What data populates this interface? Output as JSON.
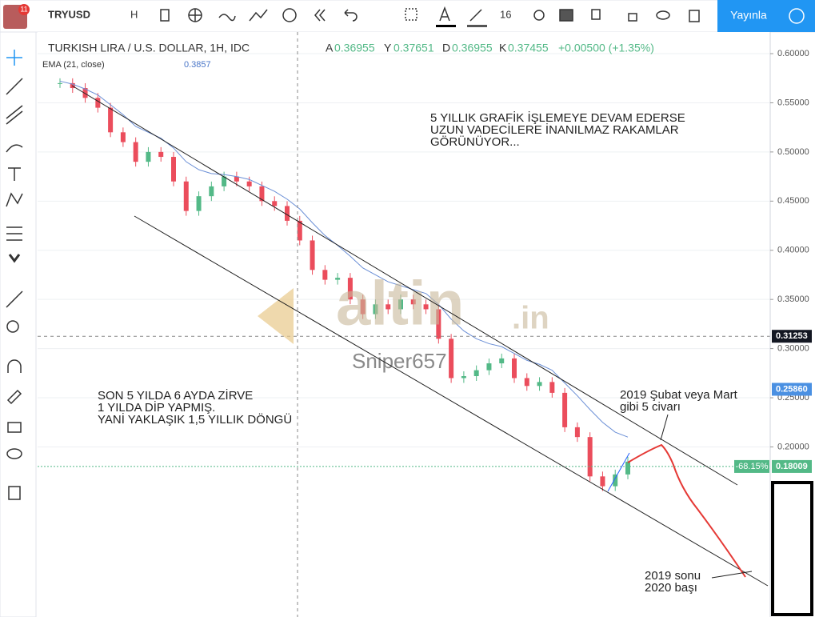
{
  "toolbar": {
    "symbol": "TRYUSD",
    "interval": "H",
    "font_size": "16",
    "publish": "Yayınla",
    "badge": "11"
  },
  "legend": {
    "title": "TURKISH LIRA / U.S. DOLLAR, 1H, IDC",
    "open_label": "A",
    "open": "0.36955",
    "high_label": "Y",
    "high": "0.37651",
    "low_label": "D",
    "low": "0.36955",
    "close_label": "K",
    "close": "0.37455",
    "change": "+0.00500 (+1.35%)",
    "ema_name": "EMA (21, close)",
    "ema_value": "0.3857"
  },
  "watermark": {
    "brand": "altin",
    "domain": ".in",
    "user": "Sniper657"
  },
  "annotations": {
    "top": [
      "5 YILLIK GRAFİK İŞLEMEYE DEVAM EDERSE",
      "UZUN VADECİLERE İNANILMAZ RAKAMLAR",
      "GÖRÜNÜYOR..."
    ],
    "left": [
      "SON 5 YILDA 6 AYDA ZİRVE",
      "1 YILDA DİP YAPMIŞ.",
      "YANİ YAKLAŞIK 1,5 YILLIK DÖNGÜ"
    ],
    "peak": [
      "2019 Şubat veya Mart",
      "gibi 5 civarı"
    ],
    "bottom": [
      "2019 sonu",
      "2020 başı"
    ]
  },
  "chart_data": {
    "type": "candlestick",
    "ylim": [
      0.027,
      0.622
    ],
    "yticks": [
      {
        "value": 0.6,
        "label": "0.60000"
      },
      {
        "value": 0.55,
        "label": "0.55000"
      },
      {
        "value": 0.5,
        "label": "0.50000"
      },
      {
        "value": 0.45,
        "label": "0.45000"
      },
      {
        "value": 0.4,
        "label": "0.40000"
      },
      {
        "value": 0.35,
        "label": "0.35000"
      },
      {
        "value": 0.3,
        "label": "0.30000"
      },
      {
        "value": 0.25,
        "label": "0.25000"
      },
      {
        "value": 0.2,
        "label": "0.20000"
      }
    ],
    "grid": true,
    "series": [
      {
        "name": "TRYUSD",
        "up_color": "#53b987",
        "down_color": "#eb4d5c",
        "values": [
          0.57,
          0.565,
          0.555,
          0.545,
          0.52,
          0.51,
          0.49,
          0.5,
          0.495,
          0.47,
          0.44,
          0.455,
          0.465,
          0.475,
          0.47,
          0.465,
          0.45,
          0.445,
          0.43,
          0.41,
          0.38,
          0.37,
          0.372,
          0.35,
          0.335,
          0.345,
          0.34,
          0.35,
          0.345,
          0.34,
          0.31,
          0.27,
          0.272,
          0.278,
          0.285,
          0.29,
          0.27,
          0.262,
          0.266,
          0.255,
          0.22,
          0.21,
          0.17,
          0.16,
          0.172,
          0.185
        ]
      },
      {
        "name": "EMA",
        "color": "#6b8fd6",
        "values": [
          0.572,
          0.569,
          0.564,
          0.558,
          0.548,
          0.538,
          0.526,
          0.52,
          0.514,
          0.504,
          0.49,
          0.482,
          0.478,
          0.477,
          0.475,
          0.472,
          0.466,
          0.46,
          0.452,
          0.442,
          0.428,
          0.415,
          0.405,
          0.394,
          0.382,
          0.375,
          0.368,
          0.364,
          0.36,
          0.356,
          0.345,
          0.33,
          0.318,
          0.31,
          0.305,
          0.302,
          0.295,
          0.288,
          0.284,
          0.278,
          0.265,
          0.252,
          0.238,
          0.225,
          0.215,
          0.21
        ]
      }
    ],
    "price_tags": [
      {
        "value": 0.31253,
        "label": "0.31253",
        "color": "#131722"
      },
      {
        "value": 0.2586,
        "label": "0.25860",
        "color": "#4a90e2"
      },
      {
        "value": 0.18009,
        "label": "0.18009",
        "color": "#53b987"
      }
    ],
    "change_tag": "-68.15%"
  }
}
